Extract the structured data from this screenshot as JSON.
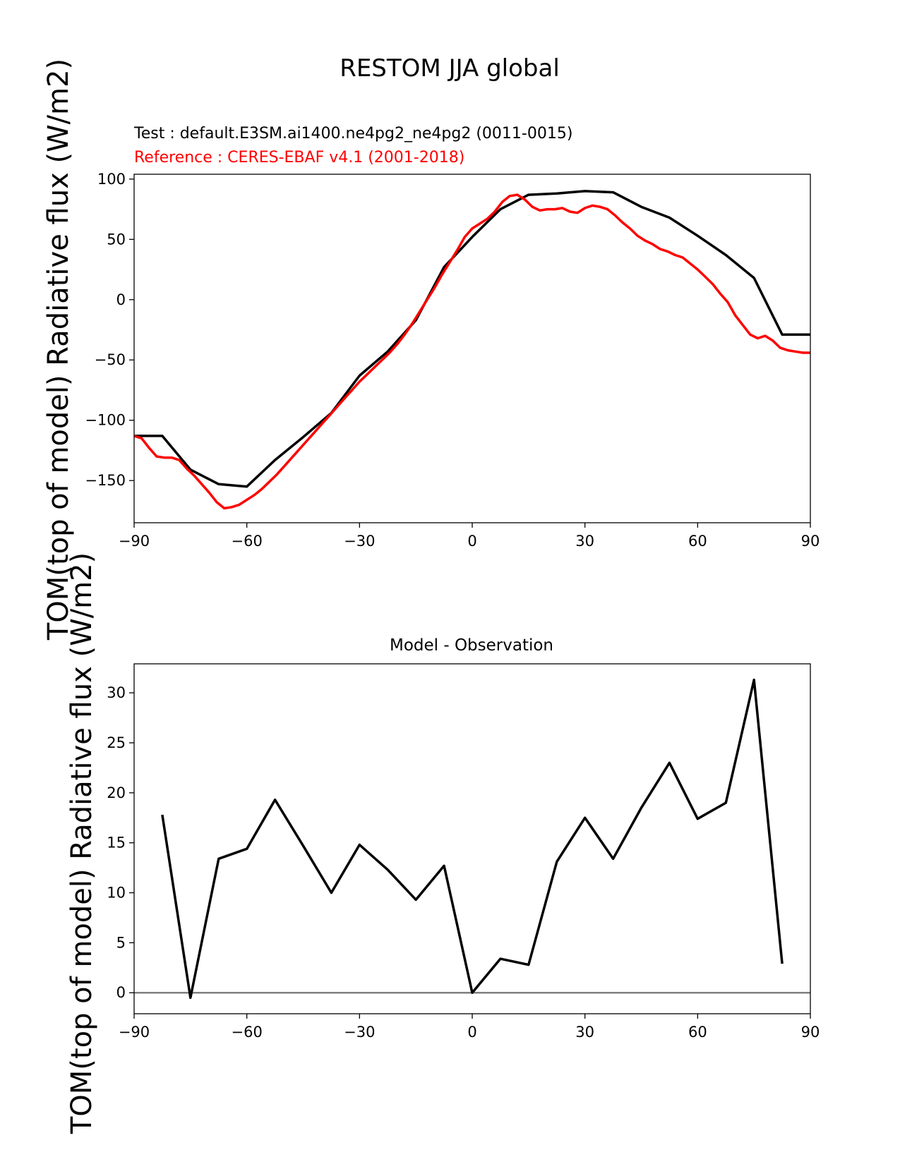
{
  "figure": {
    "suptitle": "RESTOM JJA global"
  },
  "chart_data": [
    {
      "type": "line",
      "title": "",
      "test_label": "Test : default.E3SM.ai1400.ne4pg2_ne4pg2 (0011-0015)",
      "reference_label": "Reference : CERES-EBAF v4.1 (2001-2018)",
      "xlabel": "",
      "ylabel": "TOM(top of model) Radiative flux (W/m2)",
      "xlim": [
        -90,
        90
      ],
      "ylim": [
        -185,
        104
      ],
      "xticks": [
        -90,
        -60,
        -30,
        0,
        30,
        60,
        90
      ],
      "yticks": [
        -150,
        -100,
        -50,
        0,
        50,
        100
      ],
      "grid": false,
      "colors": {
        "test": "#000000",
        "reference": "#ff0000"
      },
      "series": [
        {
          "key": "test",
          "x": [
            -90,
            -82.5,
            -75,
            -67.5,
            -60,
            -52.5,
            -45,
            -37.5,
            -30,
            -22.5,
            -15,
            -7.5,
            0,
            7.5,
            15,
            22.5,
            30,
            37.5,
            45,
            52.5,
            60,
            67.5,
            75,
            82.5,
            90
          ],
          "y": [
            -113,
            -113,
            -141,
            -153,
            -155,
            -133,
            -114,
            -94,
            -63,
            -43,
            -17,
            27,
            52,
            75,
            87,
            88,
            90,
            89,
            77,
            68,
            53,
            37,
            18,
            -29,
            -29
          ]
        },
        {
          "key": "reference",
          "x": [
            -90,
            -88,
            -86,
            -84,
            -82,
            -80,
            -78,
            -76,
            -74,
            -72,
            -70,
            -68,
            -66,
            -64,
            -62,
            -60,
            -58,
            -56,
            -54,
            -52,
            -50,
            -48,
            -46,
            -44,
            -42,
            -40,
            -38,
            -36,
            -34,
            -32,
            -30,
            -28,
            -26,
            -24,
            -22,
            -20,
            -18,
            -16,
            -14,
            -12,
            -10,
            -8,
            -6,
            -4,
            -2,
            0,
            2,
            4,
            6,
            8,
            10,
            12,
            14,
            16,
            18,
            20,
            22,
            24,
            26,
            28,
            30,
            32,
            34,
            36,
            38,
            40,
            42,
            44,
            46,
            48,
            50,
            52,
            54,
            56,
            58,
            60,
            62,
            64,
            66,
            68,
            70,
            72,
            74,
            76,
            78,
            80,
            82,
            84,
            86,
            88,
            90
          ],
          "y": [
            -113,
            -115,
            -123,
            -130,
            -131,
            -131,
            -133,
            -140,
            -146,
            -153,
            -160,
            -168,
            -173,
            -172,
            -170,
            -166,
            -162,
            -157,
            -151,
            -145,
            -138,
            -131,
            -124,
            -117,
            -110,
            -103,
            -96,
            -89,
            -82,
            -75,
            -68,
            -62,
            -56,
            -50,
            -44,
            -37,
            -29,
            -20,
            -10,
            0,
            10,
            21,
            31,
            41,
            52,
            59,
            63,
            67,
            73,
            81,
            86,
            87,
            83,
            77,
            74,
            75,
            75,
            76,
            73,
            72,
            76,
            78,
            77,
            75,
            70,
            64,
            59,
            53,
            49,
            46,
            42,
            40,
            37,
            35,
            30,
            25,
            19,
            13,
            5,
            -2,
            -13,
            -21,
            -29,
            -32,
            -30,
            -34,
            -40,
            -42,
            -43,
            -44,
            -44
          ]
        }
      ]
    },
    {
      "type": "line",
      "title": "Model - Observation",
      "xlabel": "",
      "ylabel": "TOM(top of model) Radiative flux (W/m2)",
      "xlim": [
        -90,
        90
      ],
      "ylim": [
        -2.1,
        32.9
      ],
      "xticks": [
        -90,
        -60,
        -30,
        0,
        30,
        60,
        90
      ],
      "yticks": [
        0,
        5,
        10,
        15,
        20,
        25,
        30
      ],
      "grid": false,
      "zero_line_color": "#808080",
      "colors": {
        "diff": "#000000"
      },
      "series": [
        {
          "key": "diff",
          "x": [
            -82.5,
            -75,
            -67.5,
            -60,
            -52.5,
            -45,
            -37.5,
            -30,
            -22.5,
            -15,
            -7.5,
            0,
            7.5,
            15,
            22.5,
            30,
            37.5,
            45,
            52.5,
            60,
            67.5,
            75,
            82.5
          ],
          "y": [
            17.8,
            -0.5,
            13.4,
            14.4,
            19.3,
            14.7,
            10.0,
            14.8,
            12.3,
            9.3,
            12.7,
            0.0,
            3.4,
            2.8,
            13.1,
            17.5,
            13.4,
            18.5,
            23.0,
            17.4,
            19.0,
            31.3,
            2.9
          ]
        }
      ]
    }
  ]
}
